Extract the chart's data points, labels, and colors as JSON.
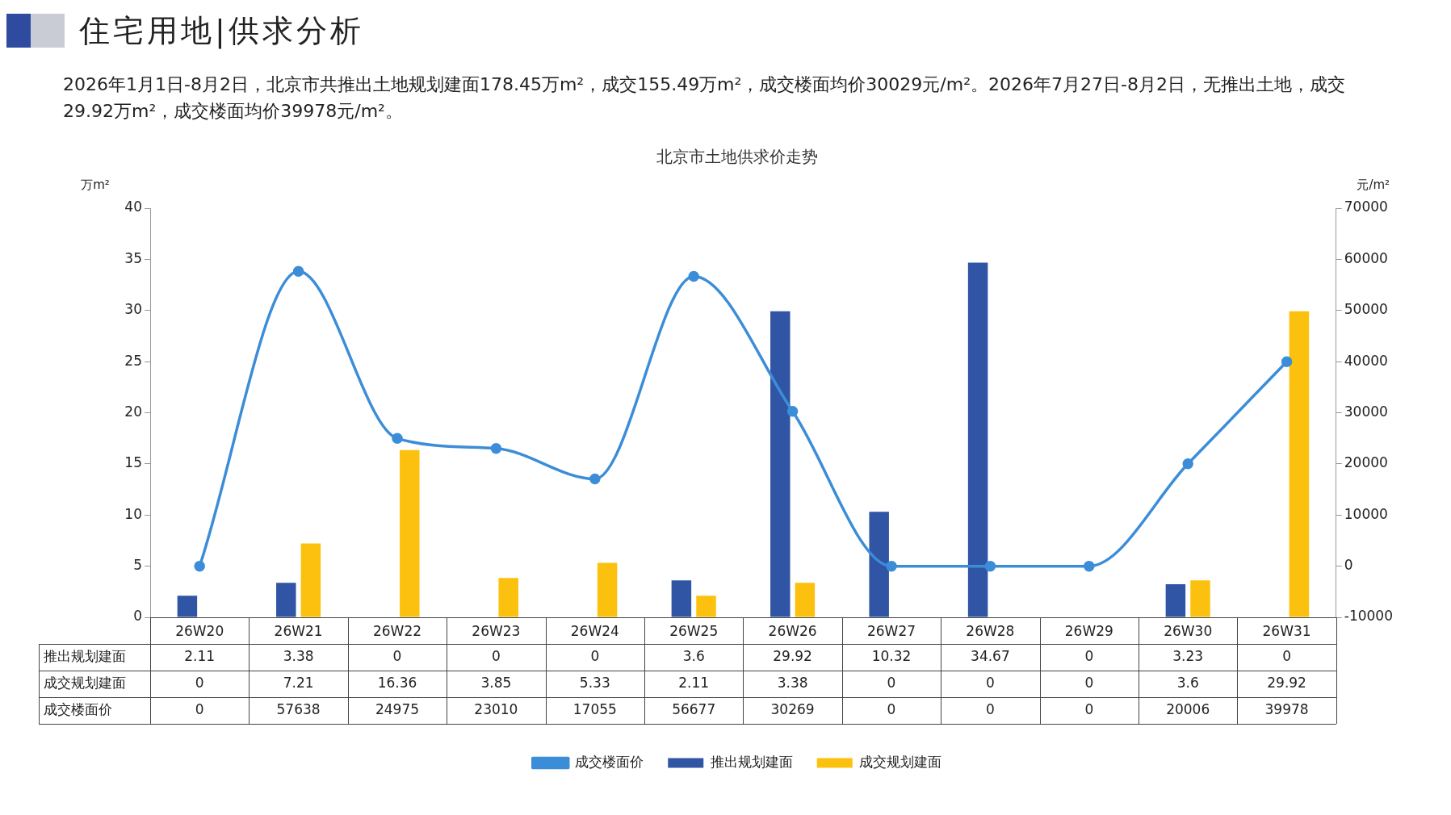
{
  "chart_data": {
    "type": "bar",
    "title": "北京市土地供求价走势",
    "annotations": [
      "住宅用地|供求分析",
      "2026年1月1日-8月2日，北京市共推出土地规划建面178.45万m²，成交155.49万m²，成交楼面均价30029元/m²。2026年7月27日-8月2日，无推出土地，成交29.92万m²，成交楼面均价39978元/m²。"
    ],
    "ylabel": "万m²",
    "y2label": "元/m²",
    "categories": [
      "26W20",
      "26W21",
      "26W22",
      "26W23",
      "26W24",
      "26W25",
      "26W26",
      "26W27",
      "26W28",
      "26W29",
      "26W30",
      "26W31"
    ],
    "series": [
      {
        "name": "推出规划建面",
        "color": "#2f55a4",
        "values": [
          2.11,
          3.38,
          0,
          0,
          0,
          3.6,
          29.92,
          10.32,
          34.67,
          0,
          3.23,
          0
        ]
      },
      {
        "name": "成交规划建面",
        "color": "#fcc10e",
        "values": [
          0,
          7.21,
          16.36,
          3.85,
          5.33,
          2.11,
          3.38,
          0,
          0,
          0,
          3.6,
          29.92
        ]
      },
      {
        "name": "成交楼面价",
        "type": "line",
        "axis": "y2",
        "color": "#3c8dd8",
        "values": [
          0,
          57638,
          24975,
          23010,
          17055,
          56677,
          30269,
          0,
          0,
          0,
          20006,
          39978
        ]
      }
    ],
    "ylim": [
      0,
      40
    ],
    "yticks": [
      0,
      5,
      10,
      15,
      20,
      25,
      30,
      35,
      40
    ],
    "y2lim": [
      -10000,
      70000
    ],
    "y2ticks": [
      -10000,
      0,
      10000,
      20000,
      30000,
      40000,
      50000,
      60000,
      70000
    ],
    "data_labels": true,
    "grid": false,
    "legend": "bottom",
    "marker": "circle",
    "line_style": "solid"
  }
}
